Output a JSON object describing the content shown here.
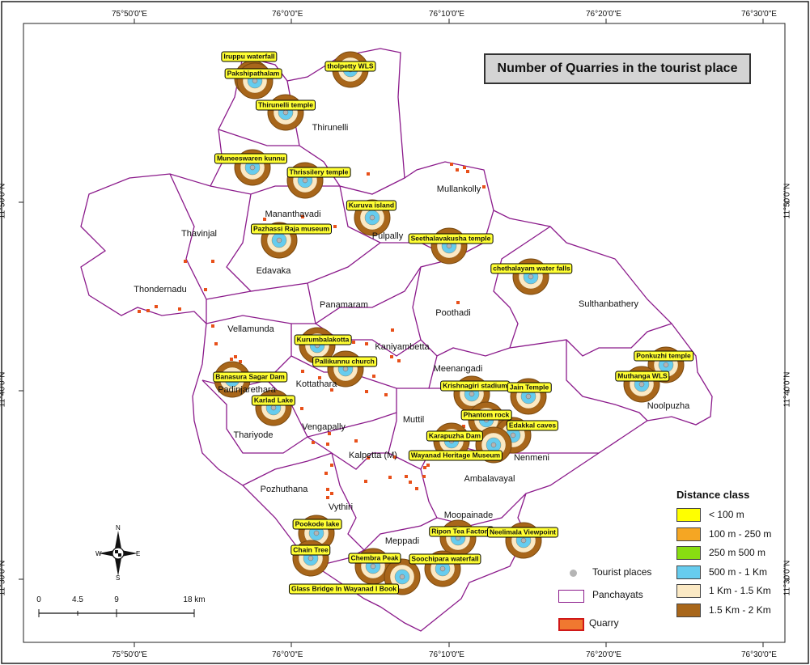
{
  "map_title": "Number of Quarries in the tourist place",
  "ticks": {
    "top": [
      "75°50'0\"E",
      "76°0'0\"E",
      "76°10'0\"E",
      "76°20'0\"E",
      "76°30'0\"E"
    ],
    "bottom": [
      "75°50'0\"E",
      "76°0'0\"E",
      "76°10'0\"E",
      "76°20'0\"E",
      "76°30'0\"E"
    ],
    "left": [
      "11°50'0\"N",
      "11°40'0\"N",
      "11°30'0\"N"
    ],
    "right": [
      "11°50'0\"N",
      "11°40'0\"N",
      "11°30'0\"N"
    ]
  },
  "panchayats": [
    "Thirunelli",
    "Mananthavadi",
    "Mullankolly",
    "Thavinjal",
    "Pulpally",
    "Edavaka",
    "Thondernadu",
    "Panamaram",
    "Poothadi",
    "Sulthanbathery",
    "Vellamunda",
    "Kaniyambetta",
    "Meenangadi",
    "Kottathara",
    "Padinjarethara",
    "Noolpuzha",
    "Muttil",
    "Thariyode",
    "Vengapally",
    "Kalpetta (M)",
    "Nenmeni",
    "Ambalavayal",
    "Pozhuthana",
    "Vythiri",
    "Moopainade",
    "Meppadi"
  ],
  "tourist_places": [
    "Iruppu waterfall",
    "Pakshipathalam",
    "tholpetty WLS",
    "Thirunelli temple",
    "Muneeswaren kunnu",
    "Thrissilery temple",
    "Kuruva island",
    "Pazhassi Raja museum",
    "Seethalavakusha temple",
    "chethalayam water falls",
    "Kurumbalakotta",
    "Pallikunnu church",
    "Ponkuzhi temple",
    "Banasura Sagar Dam",
    "Muthanga WLS",
    "Krishnagiri stadium",
    "Jain Temple",
    "Karlad Lake",
    "Phantom rock",
    "Edakkal caves",
    "Karapuzha Dam",
    "Wayanad Heritage Museum",
    "Pookode lake",
    "Ripon Tea Factory",
    "Neelimala Viewpoint",
    "Chain Tree",
    "Chembra Peak",
    "Soochipara waterfall",
    "Glass Bridge In Wayanad I Book"
  ],
  "legend": {
    "title": "Distance class",
    "classes": [
      {
        "label": "< 100 m",
        "color": "#ffff00"
      },
      {
        "label": "100 m - 250 m",
        "color": "#f5a623"
      },
      {
        "label": "250 m  500 m",
        "color": "#88dd11"
      },
      {
        "label": "500 m - 1 Km",
        "color": "#66ccee"
      },
      {
        "label": "1 Km - 1.5 Km",
        "color": "#fbe9c4"
      },
      {
        "label": "1.5 Km - 2 Km",
        "color": "#a8661a"
      }
    ],
    "symbols": {
      "tourist": "Tourist places",
      "panchayat": "Panchayats",
      "quarry": "Quarry"
    }
  },
  "scale": {
    "labels": [
      "0",
      "4.5",
      "9",
      "18 km"
    ]
  },
  "north_arrow": {
    "n": "N",
    "s": "S",
    "e": "E",
    "w": "W"
  },
  "colors": {
    "boundary": "#8b1a8b",
    "quarry": "#e8501a",
    "ring_outer": "#a8661a",
    "ring_mid": "#fbe9c4",
    "ring_inner": "#66ccee"
  }
}
